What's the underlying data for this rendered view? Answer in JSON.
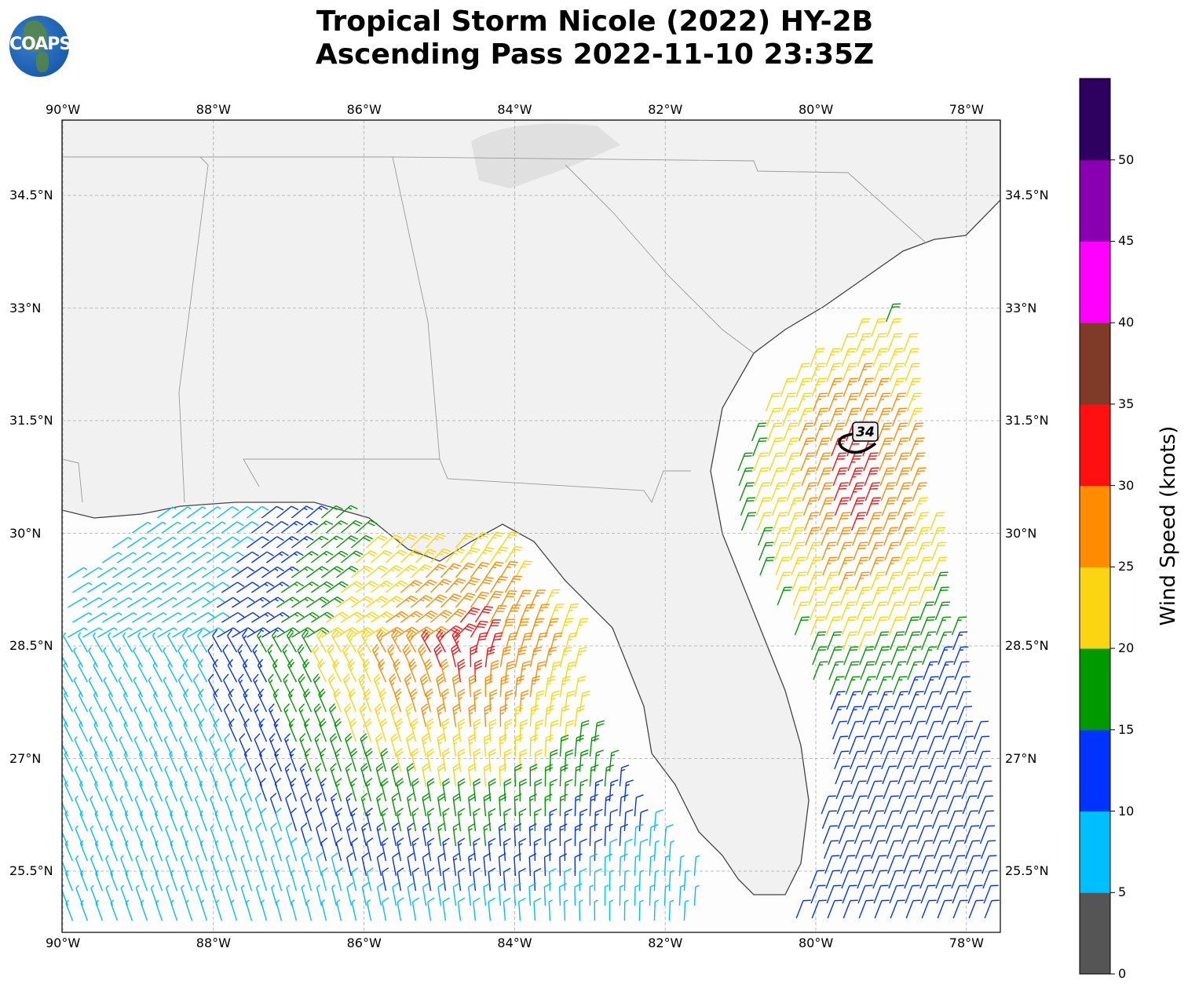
{
  "header": {
    "title_line1": "Tropical Storm Nicole (2022) HY-2B",
    "title_line2": "Ascending Pass 2022-11-10 23:35Z",
    "logo_text": "COAPS"
  },
  "map": {
    "lon_ticks": [
      "90°W",
      "88°W",
      "86°W",
      "84°W",
      "82°W",
      "80°W",
      "78°W"
    ],
    "lat_ticks": [
      "34.5°N",
      "33°N",
      "31.5°N",
      "30°N",
      "28.5°N",
      "27°N",
      "25.5°N"
    ],
    "storm_marker_label": "34"
  },
  "colorbar": {
    "title": "Wind Speed (knots)",
    "tick_labels": [
      "0",
      "5",
      "10",
      "15",
      "20",
      "25",
      "30",
      "35",
      "40",
      "45",
      "50"
    ],
    "colors": [
      "#555555",
      "#00bfff",
      "#0033ff",
      "#009900",
      "#fcd512",
      "#ff8c00",
      "#ff1010",
      "#7f3a28",
      "#ff00ff",
      "#8800b0",
      "#2e0060"
    ]
  }
}
